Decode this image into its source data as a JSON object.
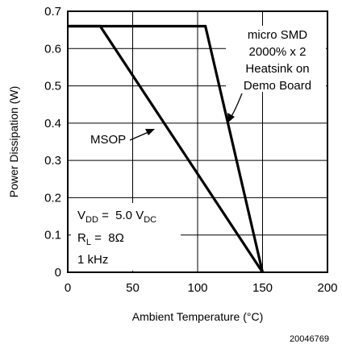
{
  "chart_data": {
    "type": "line",
    "title": "",
    "xlabel": "Ambient Temperature (°C)",
    "ylabel": "Power Dissipation (W)",
    "xlim": [
      0,
      200
    ],
    "ylim": [
      0,
      0.7
    ],
    "x_ticks": [
      "0",
      "50",
      "100",
      "150",
      "200"
    ],
    "y_ticks": [
      "0",
      "0.1",
      "0.2",
      "0.3",
      "0.4",
      "0.5",
      "0.6",
      "0.7"
    ],
    "grid": true,
    "series": [
      {
        "name": "MSOP",
        "x": [
          0,
          25,
          150
        ],
        "y": [
          0.66,
          0.66,
          0
        ]
      },
      {
        "name": "micro SMD 2000% x 2 Heatsink on Demo Board",
        "x": [
          0,
          106,
          150
        ],
        "y": [
          0.66,
          0.66,
          0
        ]
      }
    ],
    "annotations": {
      "micro_smd": [
        "micro SMD",
        "2000% x 2",
        "Heatsink on",
        "Demo Board"
      ],
      "msop": "MSOP",
      "conditions": {
        "vdd_prefix": "V",
        "vdd_sub": "DD",
        "vdd_value": " =  5.0 V",
        "vdd_unit_sub": "DC",
        "rl_prefix": "R",
        "rl_sub": "L",
        "rl_value": " =  8Ω",
        "freq": "1 kHz"
      }
    },
    "figure_id": "20046769"
  }
}
